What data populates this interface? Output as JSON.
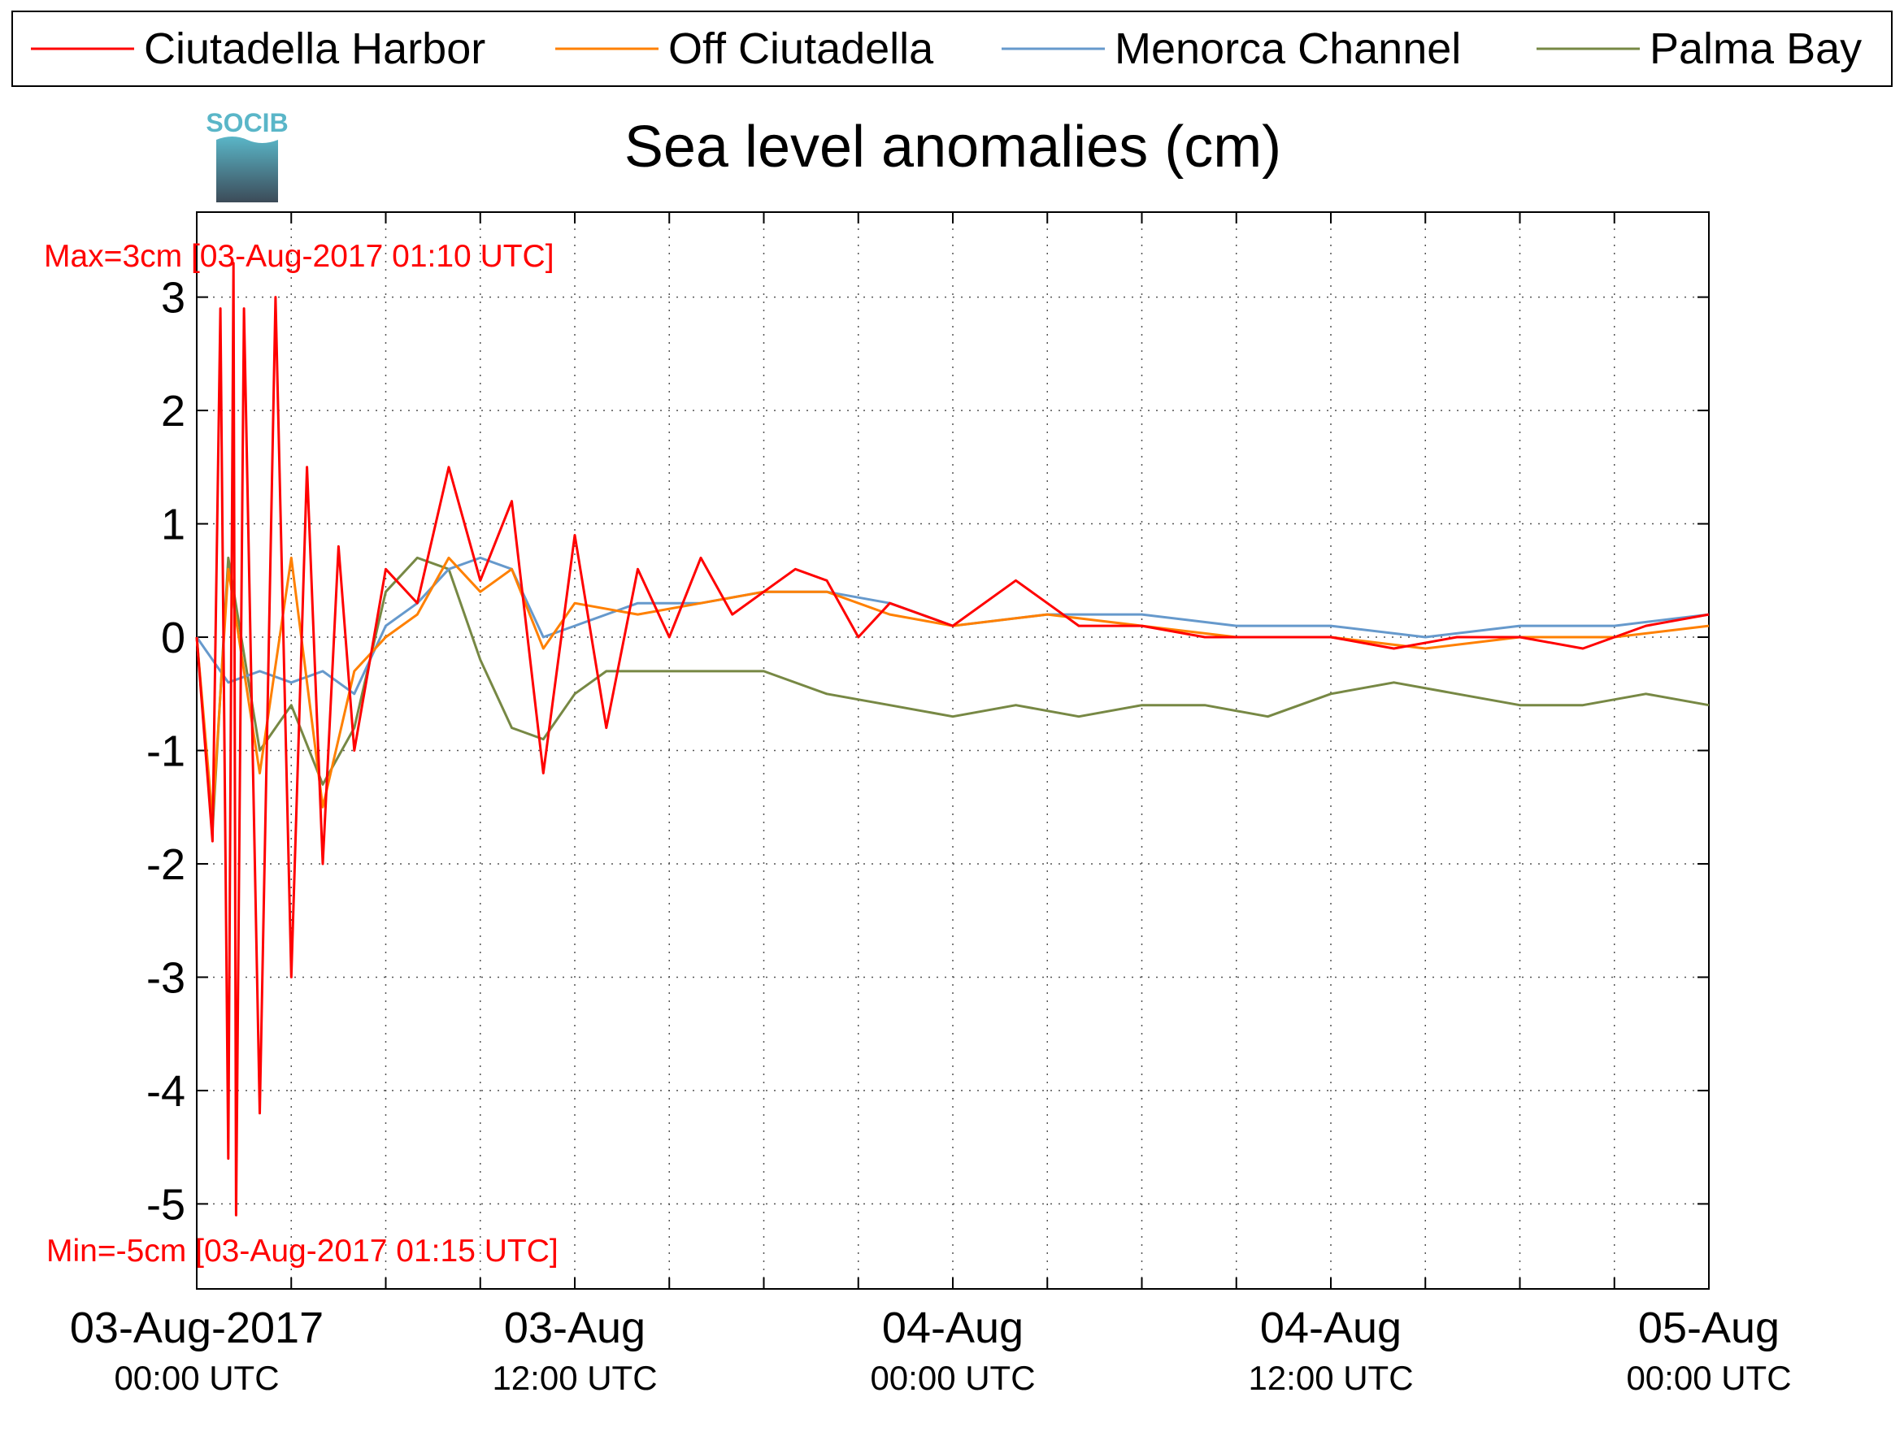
{
  "colors": {
    "ciutadella_harbor": "#ff0000",
    "off_ciutadella": "#ff8000",
    "menorca_channel": "#6699cc",
    "palma_bay": "#778844",
    "annotation": "#ff0000",
    "logo_top": "#5ab6c8",
    "logo_bottom": "#3c4b58"
  },
  "logo": {
    "text": "SOCIB"
  },
  "chart_data": {
    "type": "line",
    "title": "Sea level anomalies (cm)",
    "xlabel": "",
    "ylabel": "",
    "grid": true,
    "legend_position": "top",
    "xlim": [
      "2017-08-03 00:00",
      "2017-08-05 00:00"
    ],
    "ylim": [
      -5.75,
      3.75
    ],
    "y_ticks": [
      3,
      2,
      1,
      0,
      -1,
      -2,
      -3,
      -4,
      -5
    ],
    "x_ticks": [
      {
        "line1": "03-Aug-2017",
        "line2": "00:00 UTC",
        "at": "2017-08-03 00:00"
      },
      {
        "line1": "03-Aug",
        "line2": "12:00 UTC",
        "at": "2017-08-03 12:00"
      },
      {
        "line1": "04-Aug",
        "line2": "00:00 UTC",
        "at": "2017-08-04 00:00"
      },
      {
        "line1": "04-Aug",
        "line2": "12:00 UTC",
        "at": "2017-08-04 12:00"
      },
      {
        "line1": "05-Aug",
        "line2": "00:00 UTC",
        "at": "2017-08-05 00:00"
      }
    ],
    "annotations": {
      "max": "Max=3cm [03-Aug-2017 01:10 UTC]",
      "min": "Min=-5cm [03-Aug-2017 01:15 UTC]"
    },
    "series": [
      {
        "name": "Ciutadella Harbor",
        "x": [
          "2017-08-03 00:00",
          "2017-08-03 00:30",
          "2017-08-03 00:45",
          "2017-08-03 01:00",
          "2017-08-03 01:10",
          "2017-08-03 01:15",
          "2017-08-03 01:30",
          "2017-08-03 02:00",
          "2017-08-03 02:30",
          "2017-08-03 03:00",
          "2017-08-03 03:30",
          "2017-08-03 04:00",
          "2017-08-03 04:30",
          "2017-08-03 05:00",
          "2017-08-03 06:00",
          "2017-08-03 07:00",
          "2017-08-03 08:00",
          "2017-08-03 09:00",
          "2017-08-03 10:00",
          "2017-08-03 11:00",
          "2017-08-03 12:00",
          "2017-08-03 13:00",
          "2017-08-03 14:00",
          "2017-08-03 15:00",
          "2017-08-03 16:00",
          "2017-08-03 17:00",
          "2017-08-03 18:00",
          "2017-08-03 19:00",
          "2017-08-03 20:00",
          "2017-08-03 21:00",
          "2017-08-03 22:00",
          "2017-08-03 23:00",
          "2017-08-04 00:00",
          "2017-08-04 02:00",
          "2017-08-04 03:00",
          "2017-08-04 04:00",
          "2017-08-04 06:00",
          "2017-08-04 08:00",
          "2017-08-04 10:00",
          "2017-08-04 12:00",
          "2017-08-04 14:00",
          "2017-08-04 16:00",
          "2017-08-04 18:00",
          "2017-08-04 20:00",
          "2017-08-04 22:00",
          "2017-08-05 00:00"
        ],
        "y": [
          0.0,
          -1.8,
          2.9,
          -4.6,
          3.3,
          -5.1,
          2.9,
          -4.2,
          3.0,
          -3.0,
          1.5,
          -2.0,
          0.8,
          -1.0,
          0.6,
          0.3,
          1.5,
          0.5,
          1.2,
          -1.2,
          0.9,
          -0.8,
          0.6,
          0.0,
          0.7,
          0.2,
          0.4,
          0.6,
          0.5,
          0.0,
          0.3,
          0.2,
          0.1,
          0.5,
          0.3,
          0.1,
          0.1,
          0.0,
          0.0,
          0.0,
          -0.1,
          0.0,
          0.0,
          -0.1,
          0.1,
          0.2
        ]
      },
      {
        "name": "Off Ciutadella",
        "x": [
          "2017-08-03 00:00",
          "2017-08-03 00:30",
          "2017-08-03 01:00",
          "2017-08-03 02:00",
          "2017-08-03 03:00",
          "2017-08-03 04:00",
          "2017-08-03 05:00",
          "2017-08-03 06:00",
          "2017-08-03 07:00",
          "2017-08-03 08:00",
          "2017-08-03 09:00",
          "2017-08-03 10:00",
          "2017-08-03 11:00",
          "2017-08-03 12:00",
          "2017-08-03 14:00",
          "2017-08-03 16:00",
          "2017-08-03 18:00",
          "2017-08-03 20:00",
          "2017-08-03 22:00",
          "2017-08-04 00:00",
          "2017-08-04 03:00",
          "2017-08-04 06:00",
          "2017-08-04 09:00",
          "2017-08-04 12:00",
          "2017-08-04 15:00",
          "2017-08-04 18:00",
          "2017-08-04 21:00",
          "2017-08-05 00:00"
        ],
        "y": [
          0.0,
          -1.6,
          0.6,
          -1.2,
          0.7,
          -1.5,
          -0.3,
          0.0,
          0.2,
          0.7,
          0.4,
          0.6,
          -0.1,
          0.3,
          0.2,
          0.3,
          0.4,
          0.4,
          0.2,
          0.1,
          0.2,
          0.1,
          0.0,
          0.0,
          -0.1,
          0.0,
          0.0,
          0.1
        ]
      },
      {
        "name": "Menorca Channel",
        "x": [
          "2017-08-03 00:00",
          "2017-08-03 01:00",
          "2017-08-03 02:00",
          "2017-08-03 03:00",
          "2017-08-03 04:00",
          "2017-08-03 05:00",
          "2017-08-03 06:00",
          "2017-08-03 07:00",
          "2017-08-03 08:00",
          "2017-08-03 09:00",
          "2017-08-03 10:00",
          "2017-08-03 11:00",
          "2017-08-03 12:00",
          "2017-08-03 14:00",
          "2017-08-03 16:00",
          "2017-08-03 18:00",
          "2017-08-03 20:00",
          "2017-08-03 22:00",
          "2017-08-04 00:00",
          "2017-08-04 03:00",
          "2017-08-04 06:00",
          "2017-08-04 09:00",
          "2017-08-04 12:00",
          "2017-08-04 15:00",
          "2017-08-04 18:00",
          "2017-08-04 21:00",
          "2017-08-05 00:00"
        ],
        "y": [
          0.0,
          -0.4,
          -0.3,
          -0.4,
          -0.3,
          -0.5,
          0.1,
          0.3,
          0.6,
          0.7,
          0.6,
          0.0,
          0.1,
          0.3,
          0.3,
          0.4,
          0.4,
          0.3,
          0.1,
          0.2,
          0.2,
          0.1,
          0.1,
          0.0,
          0.1,
          0.1,
          0.2
        ]
      },
      {
        "name": "Palma Bay",
        "x": [
          "2017-08-03 00:00",
          "2017-08-03 00:30",
          "2017-08-03 01:00",
          "2017-08-03 02:00",
          "2017-08-03 03:00",
          "2017-08-03 04:00",
          "2017-08-03 05:00",
          "2017-08-03 06:00",
          "2017-08-03 07:00",
          "2017-08-03 08:00",
          "2017-08-03 09:00",
          "2017-08-03 10:00",
          "2017-08-03 11:00",
          "2017-08-03 12:00",
          "2017-08-03 13:00",
          "2017-08-03 14:00",
          "2017-08-03 16:00",
          "2017-08-03 18:00",
          "2017-08-03 20:00",
          "2017-08-03 22:00",
          "2017-08-04 00:00",
          "2017-08-04 02:00",
          "2017-08-04 04:00",
          "2017-08-04 06:00",
          "2017-08-04 08:00",
          "2017-08-04 10:00",
          "2017-08-04 12:00",
          "2017-08-04 14:00",
          "2017-08-04 16:00",
          "2017-08-04 18:00",
          "2017-08-04 20:00",
          "2017-08-04 22:00",
          "2017-08-05 00:00"
        ],
        "y": [
          0.0,
          -1.7,
          0.7,
          -1.0,
          -0.6,
          -1.3,
          -0.8,
          0.4,
          0.7,
          0.6,
          -0.2,
          -0.8,
          -0.9,
          -0.5,
          -0.3,
          -0.3,
          -0.3,
          -0.3,
          -0.5,
          -0.6,
          -0.7,
          -0.6,
          -0.7,
          -0.6,
          -0.6,
          -0.7,
          -0.5,
          -0.4,
          -0.5,
          -0.6,
          -0.6,
          -0.5,
          -0.6
        ]
      }
    ]
  }
}
